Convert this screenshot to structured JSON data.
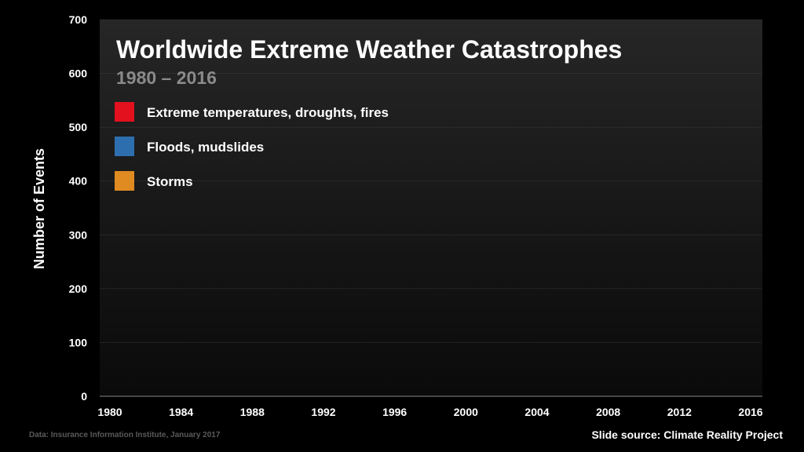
{
  "chart_data": {
    "type": "bar",
    "title": "Worldwide Extreme Weather Catastrophes",
    "subtitle": "1980 – 2016",
    "xlabel": "",
    "ylabel": "Number of Events",
    "xlim": [
      1980,
      2016
    ],
    "ylim": [
      0,
      700
    ],
    "x_ticks": [
      "1980",
      "1984",
      "1988",
      "1992",
      "1996",
      "2000",
      "2004",
      "2008",
      "2012",
      "2016"
    ],
    "y_ticks": [
      "0",
      "100",
      "200",
      "300",
      "400",
      "500",
      "600",
      "700"
    ],
    "grid": true,
    "stacked": true,
    "legend_position": "top-left",
    "series": [
      {
        "name": "Extreme temperatures, droughts, fires",
        "color": "#e3101e",
        "values": []
      },
      {
        "name": "Floods, mudslides",
        "color": "#2d6fae",
        "values": []
      },
      {
        "name": "Storms",
        "color": "#e08a22",
        "values": []
      }
    ]
  },
  "footer": {
    "source": "Data: Insurance Information Institute, January 2017",
    "credit": "Slide source: Climate Reality Project"
  },
  "colors": {
    "background": "#000000",
    "plot_top": "#262626",
    "plot_bottom": "#0a0a0a",
    "text": "#ffffff",
    "subtitle": "#8a8a8a",
    "gridline": "#4a4a4a"
  }
}
